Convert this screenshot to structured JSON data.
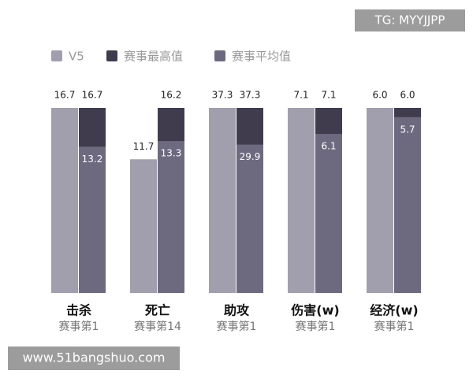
{
  "chart_data": {
    "type": "bar",
    "categories": [
      "击杀",
      "死亡",
      "助攻",
      "伤害(w)",
      "经济(w)"
    ],
    "sublabels": [
      "赛事第1",
      "赛事第14",
      "赛事第1",
      "赛事第1",
      "赛事第1"
    ],
    "series": [
      {
        "name": "V5",
        "color": "#a19eae",
        "values": [
          16.7,
          11.7,
          37.3,
          7.1,
          6.0
        ],
        "value_labels": [
          "16.7",
          "11.7",
          "37.3",
          "7.1",
          "6.0"
        ]
      },
      {
        "name": "赛事最高值",
        "color": "#403c4e",
        "values": [
          16.7,
          16.2,
          37.3,
          7.1,
          6.0
        ],
        "value_labels": [
          "16.7",
          "16.2",
          "37.3",
          "7.1",
          "6.0"
        ]
      },
      {
        "name": "赛事平均值",
        "color": "#6d6a80",
        "values": [
          13.2,
          13.3,
          29.9,
          6.1,
          5.7
        ]
      }
    ],
    "annotations": [
      "TG: MYYJJPP",
      "www.51bangshuo.com"
    ]
  }
}
